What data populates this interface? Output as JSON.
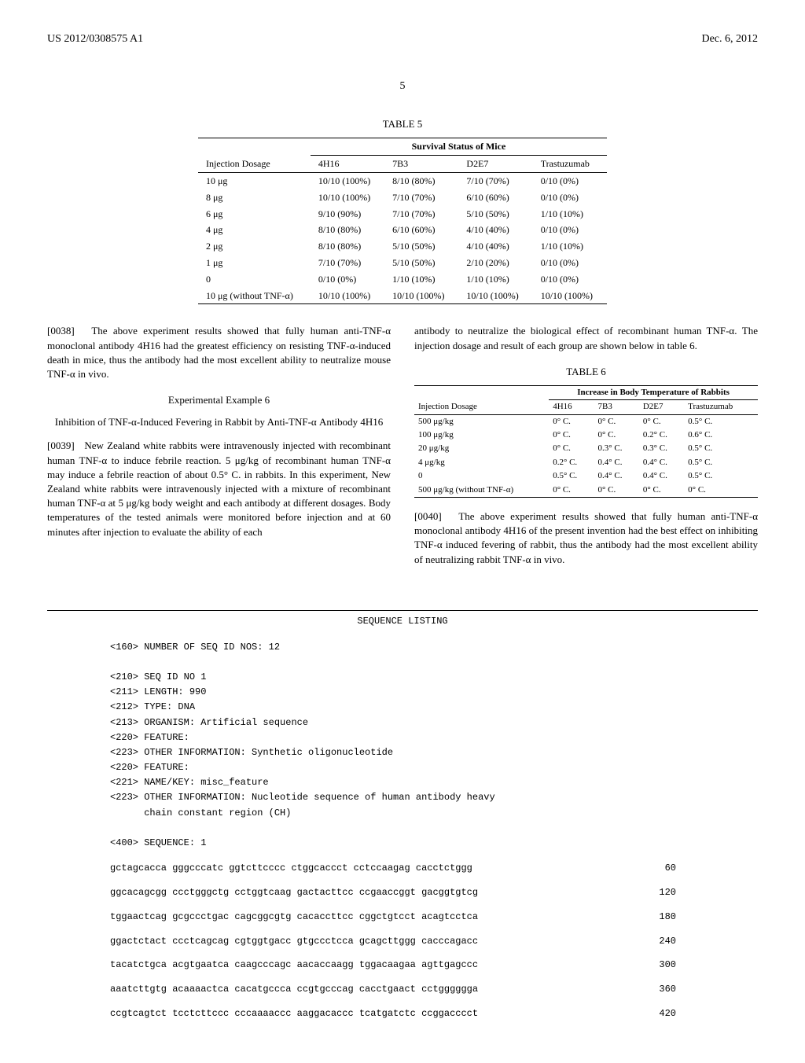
{
  "header": {
    "left": "US 2012/0308575 A1",
    "right": "Dec. 6, 2012"
  },
  "page_number": "5",
  "table5": {
    "label": "TABLE 5",
    "group_header": "Survival Status of Mice",
    "columns": [
      "Injection Dosage",
      "4H16",
      "7B3",
      "D2E7",
      "Trastuzumab"
    ],
    "rows": [
      [
        "10 μg",
        "10/10 (100%)",
        "8/10 (80%)",
        "7/10 (70%)",
        "0/10 (0%)"
      ],
      [
        "8 μg",
        "10/10 (100%)",
        "7/10 (70%)",
        "6/10 (60%)",
        "0/10 (0%)"
      ],
      [
        "6 μg",
        "9/10 (90%)",
        "7/10 (70%)",
        "5/10 (50%)",
        "1/10 (10%)"
      ],
      [
        "4 μg",
        "8/10 (80%)",
        "6/10 (60%)",
        "4/10 (40%)",
        "0/10 (0%)"
      ],
      [
        "2 μg",
        "8/10 (80%)",
        "5/10 (50%)",
        "4/10 (40%)",
        "1/10 (10%)"
      ],
      [
        "1 μg",
        "7/10 (70%)",
        "5/10 (50%)",
        "2/10 (20%)",
        "0/10 (0%)"
      ],
      [
        "0",
        "0/10 (0%)",
        "1/10 (10%)",
        "1/10 (10%)",
        "0/10 (0%)"
      ],
      [
        "10 μg (without TNF-α)",
        "10/10 (100%)",
        "10/10 (100%)",
        "10/10 (100%)",
        "10/10 (100%)"
      ]
    ]
  },
  "left_col": {
    "para1_num": "[0038]",
    "para1": "The above experiment results showed that fully human anti-TNF-α monoclonal antibody 4H16 had the greatest efficiency on resisting TNF-α-induced death in mice, thus the antibody had the most excellent ability to neutralize mouse TNF-α in vivo.",
    "example_title": "Experimental Example 6",
    "example_subtitle": "Inhibition of TNF-α-Induced Fevering in Rabbit by Anti-TNF-α Antibody 4H16",
    "para2_num": "[0039]",
    "para2": "New Zealand white rabbits were intravenously injected with recombinant human TNF-α to induce febrile reaction. 5 μg/kg of recombinant human TNF-α may induce a febrile reaction of about 0.5° C. in rabbits. In this experiment, New Zealand white rabbits were intravenously injected with a mixture of recombinant human TNF-α at 5 μg/kg body weight and each antibody at different dosages. Body temperatures of the tested animals were monitored before injection and at 60 minutes after injection to evaluate the ability of each"
  },
  "right_col": {
    "para_cont": "antibody to neutralize the biological effect of recombinant human TNF-α. The injection dosage and result of each group are shown below in table 6.",
    "para3_num": "[0040]",
    "para3": "The above experiment results showed that fully human anti-TNF-α monoclonal antibody 4H16 of the present invention had the best effect on inhibiting TNF-α induced fevering of rabbit, thus the antibody had the most excellent ability of neutralizing rabbit TNF-α in vivo."
  },
  "table6": {
    "label": "TABLE 6",
    "group_header": "Increase in Body Temperature of Rabbits",
    "columns": [
      "Injection Dosage",
      "4H16",
      "7B3",
      "D2E7",
      "Trastuzumab"
    ],
    "rows": [
      [
        "500 μg/kg",
        "0° C.",
        "0° C.",
        "0° C.",
        "0.5° C."
      ],
      [
        "100 μg/kg",
        "0° C.",
        "0° C.",
        "0.2° C.",
        "0.6° C."
      ],
      [
        "20 μg/kg",
        "0° C.",
        "0.3° C.",
        "0.3° C.",
        "0.5° C."
      ],
      [
        "4 μg/kg",
        "0.2° C.",
        "0.4° C.",
        "0.4° C.",
        "0.5° C."
      ],
      [
        "0",
        "0.5° C.",
        "0.4° C.",
        "0.4° C.",
        "0.5° C."
      ],
      [
        "500 μg/kg (without TNF-α)",
        "0° C.",
        "0° C.",
        "0° C.",
        "0° C."
      ]
    ]
  },
  "sequence": {
    "title": "SEQUENCE LISTING",
    "metadata": "<160> NUMBER OF SEQ ID NOS: 12\n\n<210> SEQ ID NO 1\n<211> LENGTH: 990\n<212> TYPE: DNA\n<213> ORGANISM: Artificial sequence\n<220> FEATURE:\n<223> OTHER INFORMATION: Synthetic oligonucleotide\n<220> FEATURE:\n<221> NAME/KEY: misc_feature\n<223> OTHER INFORMATION: Nucleotide sequence of human antibody heavy\n      chain constant region (CH)\n\n<400> SEQUENCE: 1",
    "rows": [
      {
        "seq": "gctagcacca gggcccatc ggtcttcccc ctggcaccct cctccaagag cacctctggg",
        "num": "60"
      },
      {
        "seq": "ggcacagcgg ccctgggctg cctggtcaag gactacttcc ccgaaccggt gacggtgtcg",
        "num": "120"
      },
      {
        "seq": "tggaactcag gcgccctgac cagcggcgtg cacaccttcc cggctgtcct acagtcctca",
        "num": "180"
      },
      {
        "seq": "ggactctact ccctcagcag cgtggtgacc gtgccctcca gcagcttggg cacccagacc",
        "num": "240"
      },
      {
        "seq": "tacatctgca acgtgaatca caagcccagc aacaccaagg tggacaagaa agttgagccc",
        "num": "300"
      },
      {
        "seq": "aaatcttgtg acaaaactca cacatgccca ccgtgcccag cacctgaact cctgggggga",
        "num": "360"
      },
      {
        "seq": "ccgtcagtct tcctcttccc cccaaaaccc aaggacaccc tcatgatctc ccggacccct",
        "num": "420"
      }
    ]
  }
}
